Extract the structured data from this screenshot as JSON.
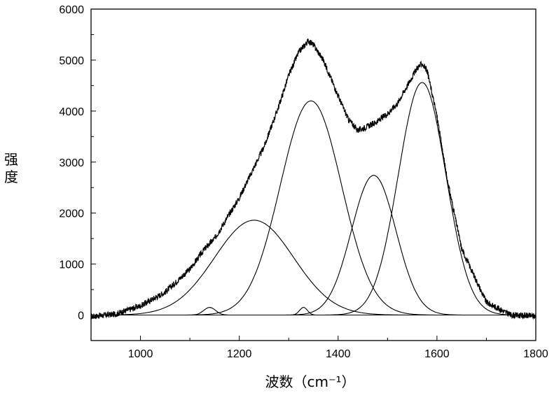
{
  "chart_data": {
    "type": "line",
    "xlabel": "波数（cm⁻¹）",
    "ylabel": "强度",
    "xlim": [
      900,
      1800
    ],
    "ylim": [
      -500,
      6000
    ],
    "x_ticks": [
      1000,
      1200,
      1400,
      1600,
      1800
    ],
    "y_ticks": [
      0,
      1000,
      2000,
      3000,
      4000,
      5000,
      6000
    ],
    "grid": false,
    "legend": "none",
    "line_color": "#000000",
    "components": [
      {
        "center": 1140,
        "height": 150,
        "width": 12
      },
      {
        "center": 1230,
        "height": 1860,
        "width": 80
      },
      {
        "center": 1330,
        "height": 150,
        "width": 8
      },
      {
        "center": 1345,
        "height": 4200,
        "width": 62
      },
      {
        "center": 1472,
        "height": 2740,
        "width": 45
      },
      {
        "center": 1570,
        "height": 4560,
        "width": 48
      }
    ],
    "series": [
      {
        "x": [
          900,
          950,
          1000,
          1050,
          1100,
          1130,
          1150,
          1200,
          1250,
          1280,
          1300,
          1320,
          1340,
          1350,
          1370,
          1400,
          1420,
          1440,
          1460,
          1480,
          1500,
          1520,
          1540,
          1560,
          1570,
          1580,
          1600,
          1620,
          1650,
          1700,
          1750,
          1800
        ],
        "y": [
          -30,
          20,
          180,
          450,
          900,
          1300,
          1500,
          2300,
          3300,
          4100,
          4700,
          5150,
          5380,
          5300,
          5000,
          4300,
          3850,
          3620,
          3700,
          3800,
          3950,
          4150,
          4500,
          4850,
          4930,
          4800,
          3900,
          2700,
          1300,
          250,
          0,
          -20
        ]
      }
    ]
  }
}
